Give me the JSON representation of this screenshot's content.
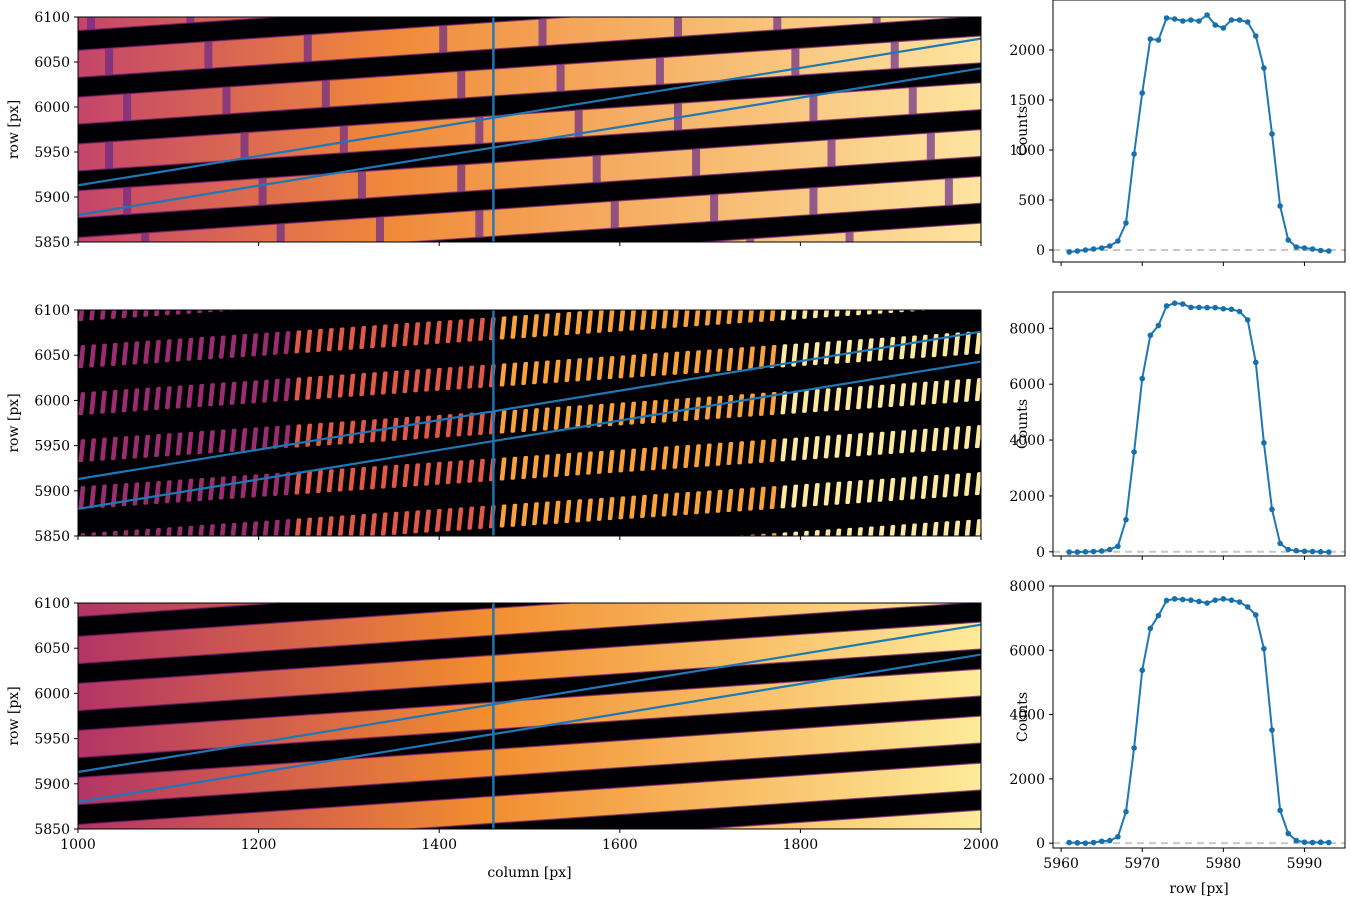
{
  "chart_data": [
    {
      "type": "heatmap",
      "panel": "image-1",
      "xlabel": "",
      "ylabel": "row [px]",
      "xlim": [
        1000,
        2000
      ],
      "ylim": [
        5850,
        6100
      ],
      "xticks": [
        1000,
        1200,
        1400,
        1600,
        1800,
        2000
      ],
      "xticklabels_shown": false,
      "yticks": [
        5850,
        5900,
        5950,
        6000,
        6050,
        6100
      ],
      "colormap": "inferno",
      "pattern": "continuous bands with dips",
      "band_slope": 0.068,
      "band_spacing": 52,
      "band_width": 30,
      "band_centers_at_x1000": [
        5840,
        5892,
        5944,
        5996,
        6048,
        6100
      ],
      "cut_column": 1460,
      "boundary_lines": [
        {
          "x": [
            1000,
            2000
          ],
          "y": [
            5880,
            6043
          ]
        },
        {
          "x": [
            1000,
            2000
          ],
          "y": [
            5913,
            6076
          ]
        }
      ]
    },
    {
      "type": "heatmap",
      "panel": "image-2",
      "xlabel": "",
      "ylabel": "row [px]",
      "xlim": [
        1000,
        2000
      ],
      "ylim": [
        5850,
        6100
      ],
      "xticks": [
        1000,
        1200,
        1400,
        1600,
        1800,
        2000
      ],
      "xticklabels_shown": false,
      "yticks": [
        5850,
        5900,
        5950,
        6000,
        6050,
        6100
      ],
      "colormap": "inferno",
      "pattern": "dashed bands",
      "band_slope": 0.068,
      "band_spacing": 52,
      "band_width": 30,
      "band_centers_at_x1000": [
        5840,
        5892,
        5944,
        5996,
        6048,
        6100
      ],
      "cut_column": 1460,
      "boundary_lines": [
        {
          "x": [
            1000,
            2000
          ],
          "y": [
            5880,
            6043
          ]
        },
        {
          "x": [
            1000,
            2000
          ],
          "y": [
            5913,
            6076
          ]
        }
      ]
    },
    {
      "type": "heatmap",
      "panel": "image-3",
      "xlabel": "column [px]",
      "ylabel": "row [px]",
      "xlim": [
        1000,
        2000
      ],
      "ylim": [
        5850,
        6100
      ],
      "xticks": [
        1000,
        1200,
        1400,
        1600,
        1800,
        2000
      ],
      "xticklabels_shown": true,
      "yticks": [
        5850,
        5900,
        5950,
        6000,
        6050,
        6100
      ],
      "colormap": "inferno",
      "pattern": "smooth continuous bands",
      "band_slope": 0.068,
      "band_spacing": 52,
      "band_width": 30,
      "band_centers_at_x1000": [
        5840,
        5892,
        5944,
        5996,
        6048,
        6100
      ],
      "cut_column": 1460,
      "boundary_lines": [
        {
          "x": [
            1000,
            2000
          ],
          "y": [
            5880,
            6043
          ]
        },
        {
          "x": [
            1000,
            2000
          ],
          "y": [
            5913,
            6076
          ]
        }
      ]
    },
    {
      "type": "line",
      "panel": "profile-1",
      "xlabel": "",
      "ylabel": "Counts",
      "xlim": [
        5959,
        5995
      ],
      "ylim": [
        -120,
        2500
      ],
      "xticks": [
        5960,
        5970,
        5980,
        5990
      ],
      "xticklabels_shown": false,
      "yticks": [
        0,
        500,
        1000,
        1500,
        2000
      ],
      "baseline": 0,
      "x": [
        5961,
        5962,
        5963,
        5964,
        5965,
        5966,
        5967,
        5968,
        5969,
        5970,
        5971,
        5972,
        5973,
        5974,
        5975,
        5976,
        5977,
        5978,
        5979,
        5980,
        5981,
        5982,
        5983,
        5984,
        5985,
        5986,
        5987,
        5988,
        5989,
        5990,
        5991,
        5992,
        5993
      ],
      "y": [
        -20,
        -10,
        0,
        10,
        20,
        40,
        90,
        270,
        960,
        1570,
        2110,
        2100,
        2320,
        2310,
        2290,
        2300,
        2290,
        2350,
        2250,
        2220,
        2300,
        2300,
        2280,
        2140,
        1820,
        1160,
        440,
        100,
        30,
        20,
        10,
        -5,
        -10
      ]
    },
    {
      "type": "line",
      "panel": "profile-2",
      "xlabel": "",
      "ylabel": "Counts",
      "xlim": [
        5959,
        5995
      ],
      "ylim": [
        -150,
        9300
      ],
      "xticks": [
        5960,
        5970,
        5980,
        5990
      ],
      "xticklabels_shown": false,
      "yticks": [
        0,
        2000,
        4000,
        6000,
        8000
      ],
      "baseline": 0,
      "x": [
        5961,
        5962,
        5963,
        5964,
        5965,
        5966,
        5967,
        5968,
        5969,
        5970,
        5971,
        5972,
        5973,
        5974,
        5975,
        5976,
        5977,
        5978,
        5979,
        5980,
        5981,
        5982,
        5983,
        5984,
        5985,
        5986,
        5987,
        5988,
        5989,
        5990,
        5991,
        5992,
        5993
      ],
      "y": [
        -10,
        -10,
        0,
        10,
        30,
        80,
        200,
        1150,
        3570,
        6200,
        7750,
        8100,
        8800,
        8900,
        8870,
        8750,
        8750,
        8740,
        8740,
        8700,
        8680,
        8600,
        8300,
        6780,
        3900,
        1520,
        300,
        80,
        40,
        20,
        10,
        0,
        -10
      ]
    },
    {
      "type": "line",
      "panel": "profile-3",
      "xlabel": "row [px]",
      "ylabel": "Counts",
      "xlim": [
        5959,
        5995
      ],
      "ylim": [
        -150,
        8000
      ],
      "xticks": [
        5960,
        5970,
        5980,
        5990
      ],
      "xticklabels_shown": true,
      "yticks": [
        0,
        2000,
        4000,
        6000,
        8000
      ],
      "baseline": 0,
      "x": [
        5961,
        5962,
        5963,
        5964,
        5965,
        5966,
        5967,
        5968,
        5969,
        5970,
        5971,
        5972,
        5973,
        5974,
        5975,
        5976,
        5977,
        5978,
        5979,
        5980,
        5981,
        5982,
        5983,
        5984,
        5985,
        5986,
        5987,
        5988,
        5989,
        5990,
        5991,
        5992,
        5993
      ],
      "y": [
        20,
        10,
        0,
        20,
        60,
        80,
        200,
        980,
        2960,
        5380,
        6680,
        7080,
        7550,
        7600,
        7580,
        7560,
        7520,
        7470,
        7560,
        7600,
        7560,
        7500,
        7350,
        7100,
        6050,
        3520,
        1020,
        300,
        80,
        30,
        20,
        30,
        20
      ]
    }
  ],
  "colors": {
    "line": "#1f77b4",
    "marker": "#1570ae",
    "baseline": "#c8c8c8",
    "background": "#000004",
    "band_low": "#b33466",
    "band_high": "#fdd26a"
  }
}
